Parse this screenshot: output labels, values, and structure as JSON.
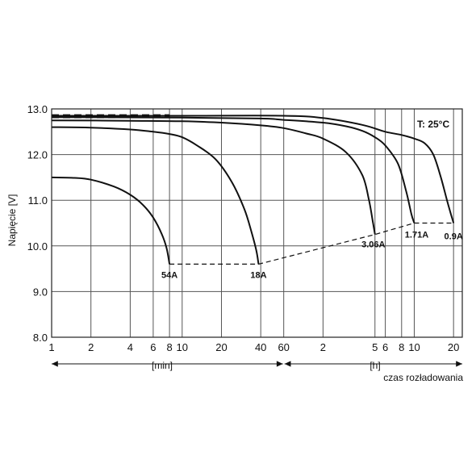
{
  "chart_data": {
    "type": "line",
    "title": "",
    "ylabel": "Napięcie [V]",
    "xlabel": "czas rozładowania",
    "ylim": [
      8.0,
      13.0
    ],
    "y_ticks": [
      "13.0",
      "12.0",
      "11.0",
      "10.0",
      "9.0",
      "8.0"
    ],
    "y_tick_values": [
      13.0,
      12.0,
      11.0,
      10.0,
      9.0,
      8.0
    ],
    "x_scale": "log",
    "x_segments": [
      {
        "label": "[min]",
        "unit": "min",
        "ticks": [
          "1",
          "2",
          "4",
          "6",
          "8",
          "10",
          "20",
          "40",
          "60"
        ],
        "tick_values": [
          1,
          2,
          4,
          6,
          8,
          10,
          20,
          40,
          60
        ]
      },
      {
        "label": "[h]",
        "unit": "h",
        "ticks": [
          "2",
          "5",
          "6",
          "8",
          "10",
          "20"
        ],
        "tick_values": [
          2,
          5,
          6,
          8,
          10,
          20
        ]
      }
    ],
    "temperature_note": "T: 25°C",
    "grid": true,
    "series": [
      {
        "name": "54A",
        "x_unit": "min",
        "points": [
          [
            1,
            11.5
          ],
          [
            1.5,
            11.49
          ],
          [
            2,
            11.45
          ],
          [
            3,
            11.3
          ],
          [
            4,
            11.12
          ],
          [
            5,
            10.9
          ],
          [
            6,
            10.62
          ],
          [
            7,
            10.25
          ],
          [
            7.6,
            9.95
          ],
          [
            8,
            9.6
          ]
        ]
      },
      {
        "name": "18A",
        "x_unit": "min",
        "points": [
          [
            1,
            12.6
          ],
          [
            2,
            12.59
          ],
          [
            4,
            12.55
          ],
          [
            6,
            12.5
          ],
          [
            8,
            12.45
          ],
          [
            10,
            12.38
          ],
          [
            13,
            12.2
          ],
          [
            18,
            11.9
          ],
          [
            24,
            11.4
          ],
          [
            30,
            10.8
          ],
          [
            34,
            10.3
          ],
          [
            37,
            9.9
          ],
          [
            38.5,
            9.6
          ]
        ]
      },
      {
        "name": "3.06A",
        "x_unit": "min",
        "points": [
          [
            1,
            12.75
          ],
          [
            4,
            12.74
          ],
          [
            10,
            12.73
          ],
          [
            20,
            12.7
          ],
          [
            40,
            12.64
          ],
          [
            60,
            12.58
          ],
          [
            90,
            12.46
          ],
          [
            120,
            12.35
          ],
          [
            180,
            12.05
          ],
          [
            240,
            11.55
          ],
          [
            270,
            11.0
          ],
          [
            290,
            10.5
          ],
          [
            300,
            10.25
          ]
        ]
      },
      {
        "name": "1.71A",
        "x_unit": "min",
        "points": [
          [
            1,
            12.82
          ],
          [
            10,
            12.81
          ],
          [
            40,
            12.79
          ],
          [
            60,
            12.76
          ],
          [
            120,
            12.7
          ],
          [
            180,
            12.62
          ],
          [
            240,
            12.52
          ],
          [
            300,
            12.38
          ],
          [
            360,
            12.2
          ],
          [
            450,
            11.8
          ],
          [
            520,
            11.2
          ],
          [
            570,
            10.7
          ],
          [
            600,
            10.5
          ]
        ]
      },
      {
        "name": "0.9A",
        "x_unit": "min",
        "points": [
          [
            1,
            12.85
          ],
          [
            10,
            12.85
          ],
          [
            60,
            12.85
          ],
          [
            120,
            12.8
          ],
          [
            240,
            12.65
          ],
          [
            360,
            12.5
          ],
          [
            480,
            12.43
          ],
          [
            600,
            12.35
          ],
          [
            720,
            12.25
          ],
          [
            840,
            12.0
          ],
          [
            960,
            11.5
          ],
          [
            1080,
            10.95
          ],
          [
            1200,
            10.5
          ]
        ]
      },
      {
        "name": "",
        "x_unit": "min",
        "style": "dashed",
        "points": [
          [
            1,
            12.86
          ],
          [
            8,
            12.86
          ]
        ]
      },
      {
        "name": "",
        "x_unit": "min",
        "style": "dashed",
        "points": [
          [
            1,
            12.82
          ],
          [
            8,
            12.82
          ]
        ]
      },
      {
        "name": "",
        "x_unit": "min",
        "style": "dashed",
        "points": [
          [
            8,
            9.6
          ],
          [
            38.5,
            9.6
          ],
          [
            300,
            10.25
          ],
          [
            600,
            10.5
          ],
          [
            1200,
            10.5
          ]
        ]
      }
    ]
  }
}
